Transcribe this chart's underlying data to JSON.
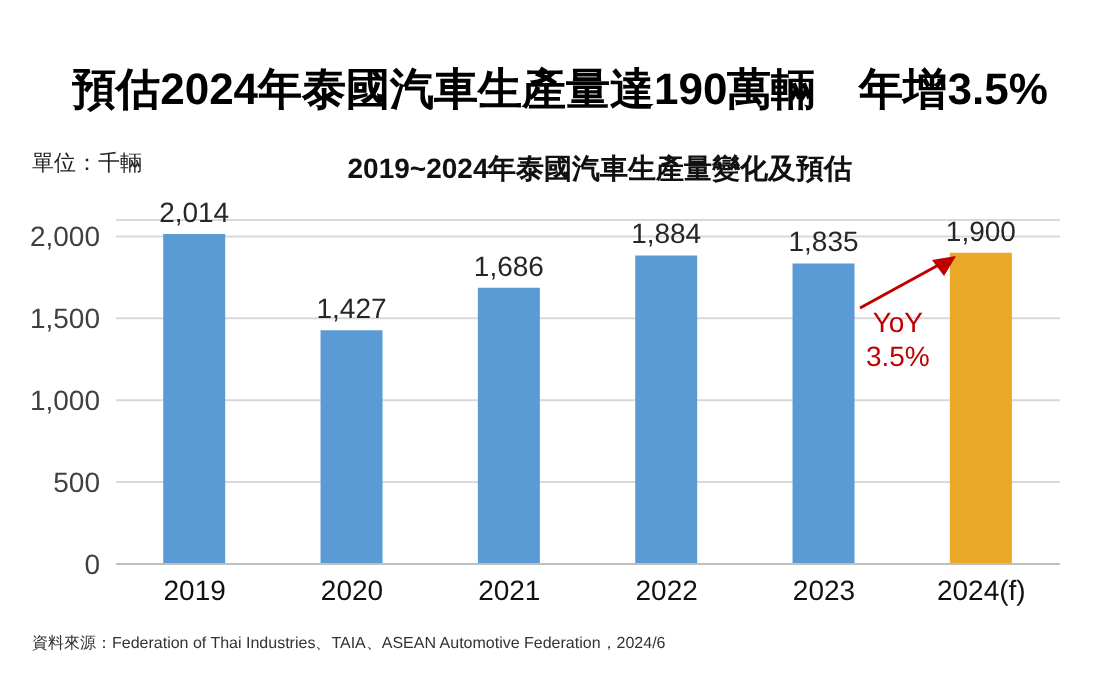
{
  "chart_data": {
    "type": "bar",
    "title": "預估2024年泰國汽車生產量達190萬輛　年增3.5%",
    "subtitle": "2019~2024年泰國汽車生產量變化及預估",
    "ylabel": "單位：千輛",
    "categories": [
      "2019",
      "2020",
      "2021",
      "2022",
      "2023",
      "2024(f)"
    ],
    "values": [
      2014,
      1427,
      1686,
      1884,
      1835,
      1900
    ],
    "colors": [
      "#5b9bd5",
      "#5b9bd5",
      "#5b9bd5",
      "#5b9bd5",
      "#5b9bd5",
      "#e9a828"
    ],
    "value_labels": [
      "2,014",
      "1,427",
      "1,686",
      "1,884",
      "1,835",
      "1,900"
    ],
    "ylim": [
      0,
      2100
    ],
    "yticks": [
      {
        "value": 0,
        "label": "0"
      },
      {
        "value": 500,
        "label": "500"
      },
      {
        "value": 1000,
        "label": "1,000"
      },
      {
        "value": 1500,
        "label": "1,500"
      },
      {
        "value": 2000,
        "label": "2,000"
      }
    ],
    "grid": "y",
    "annotations": [
      {
        "text": "YoY 3.5%",
        "x": "2024(f)",
        "y": 1900
      },
      "資料來源：Federation of Thai Industries、TAIA、ASEAN Automotive Federation，2024/6"
    ]
  }
}
